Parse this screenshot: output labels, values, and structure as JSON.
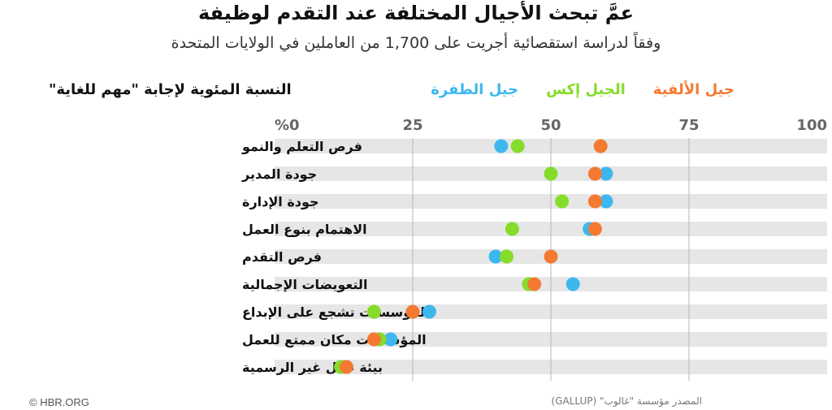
{
  "title": "عمَّ تبحث الأجيال المختلفة عند التقدم لوظيفة",
  "subtitle": "وفقاً لدراسة استقصائية أجريت على 1,700 من العاملين في الولايات المتحدة",
  "axis_title": "النسبة المئوية لإجابة \"مهم للغاية\"",
  "footer": {
    "copyright": "© HBR.ORG",
    "source": "المصدر مؤسسة \"غالوب\" (GALLUP)"
  },
  "colors": {
    "millennials": "#f47a32",
    "genx": "#86dc2a",
    "boomers": "#3db8ef",
    "stripe": "#e6e6e6",
    "grid": "#b5b5b5"
  },
  "chart_data": {
    "type": "scatter",
    "title": "عمَّ تبحث الأجيال المختلفة عند التقدم لوظيفة",
    "xlabel": "النسبة المئوية لإجابة \"مهم للغاية\"",
    "xlim": [
      0,
      100
    ],
    "x_ticks": [
      "%0",
      "25",
      "50",
      "75",
      "100"
    ],
    "grid": true,
    "legend_position": "top",
    "categories": [
      "فرص التعلم والنمو",
      "جودة المدير",
      "جودة الإدارة",
      "الاهتمام بنوع العمل",
      "فرص التقدم",
      "التعويضات الإجمالية",
      "المؤسسات تشجع على الإبداع",
      "المؤسسات مكان ممتع للعمل",
      "بيئة عمل غير الرسمية"
    ],
    "series": [
      {
        "name": "جيل الألفية",
        "color": "#f47a32",
        "values": [
          59,
          58,
          58,
          58,
          50,
          47,
          25,
          18,
          13
        ]
      },
      {
        "name": "الجيل إكس",
        "color": "#86dc2a",
        "values": [
          44,
          50,
          52,
          43,
          42,
          46,
          18,
          19,
          12
        ]
      },
      {
        "name": "جيل الطفرة",
        "color": "#3db8ef",
        "values": [
          41,
          60,
          60,
          57,
          40,
          54,
          28,
          21,
          13
        ]
      }
    ]
  }
}
